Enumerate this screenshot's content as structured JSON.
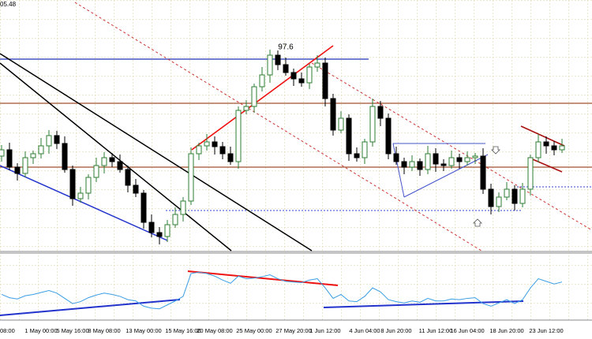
{
  "chart_data": {
    "type": "candlestick",
    "header_text": "05.48",
    "annotation": "97.6",
    "categories": [
      "08:00",
      null,
      null,
      null,
      null,
      "1 May 00:00",
      null,
      null,
      null,
      "5 May 16:00",
      null,
      null,
      null,
      "8 May 08:00",
      null,
      null,
      null,
      null,
      "13 May 00:00",
      null,
      null,
      null,
      null,
      "15 May 16:00",
      null,
      null,
      null,
      "20 May 08:00",
      null,
      null,
      null,
      null,
      "25 May 00:00",
      null,
      null,
      null,
      null,
      "27 May 20:00",
      null,
      null,
      null,
      "1 Jun 12:00",
      null,
      null,
      null,
      null,
      "4 Jun 04:00",
      null,
      null,
      null,
      "8 Jun 20:00",
      null,
      null,
      null,
      null,
      "11 Jun 12:00",
      null,
      null,
      null,
      "16 Jun 04:00",
      null,
      null,
      null,
      null,
      "18 Jun 20:00",
      null,
      null,
      null,
      null,
      "23 Jun 12:00",
      null,
      null
    ],
    "open": [
      120,
      128,
      106,
      98,
      118,
      123,
      133,
      146,
      136,
      103,
      66,
      73,
      93,
      108,
      118,
      113,
      103,
      83,
      73,
      36,
      23,
      18,
      33,
      46,
      63,
      123,
      133,
      138,
      132,
      123,
      113,
      178,
      183,
      208,
      223,
      248,
      236,
      226,
      218,
      213,
      233,
      238,
      193,
      153,
      168,
      123,
      118,
      138,
      183,
      168,
      123,
      113,
      106,
      113,
      103,
      123,
      110,
      108,
      118,
      113,
      118,
      120,
      78,
      56,
      68,
      78,
      60,
      78,
      118,
      138,
      133,
      128
    ],
    "high": [
      134,
      137,
      111,
      126,
      127,
      143,
      153,
      152,
      145,
      108,
      81,
      97,
      118,
      125,
      124,
      122,
      108,
      91,
      77,
      46,
      30,
      39,
      55,
      68,
      131,
      137,
      148,
      145,
      138,
      132,
      183,
      191,
      212,
      233,
      255,
      254,
      245,
      231,
      226,
      237,
      248,
      245,
      199,
      177,
      173,
      131,
      142,
      193,
      190,
      174,
      132,
      118,
      121,
      117,
      133,
      130,
      116,
      127,
      123,
      126,
      124,
      130,
      85,
      74,
      87,
      83,
      86,
      122,
      148,
      145,
      139,
      142
    ],
    "low": [
      113,
      102,
      89,
      93,
      110,
      117,
      123,
      129,
      99,
      57,
      61,
      65,
      87,
      98,
      106,
      99,
      74,
      68,
      28,
      17,
      8,
      11,
      29,
      37,
      58,
      115,
      127,
      122,
      116,
      109,
      104,
      173,
      175,
      202,
      213,
      229,
      222,
      209,
      208,
      205,
      227,
      183,
      146,
      149,
      114,
      113,
      110,
      132,
      158,
      116,
      109,
      97,
      101,
      95,
      97,
      100,
      101,
      104,
      104,
      108,
      110,
      72,
      46,
      49,
      64,
      51,
      55,
      70,
      112,
      123,
      121,
      124
    ],
    "close": [
      128,
      106,
      98,
      118,
      123,
      133,
      146,
      136,
      103,
      66,
      73,
      93,
      108,
      118,
      113,
      103,
      83,
      73,
      36,
      23,
      18,
      33,
      46,
      63,
      123,
      133,
      138,
      132,
      123,
      113,
      178,
      183,
      208,
      223,
      248,
      236,
      226,
      218,
      213,
      233,
      238,
      193,
      153,
      168,
      123,
      118,
      138,
      183,
      168,
      123,
      113,
      106,
      113,
      103,
      123,
      110,
      108,
      118,
      113,
      118,
      120,
      78,
      56,
      68,
      78,
      60,
      78,
      118,
      138,
      133,
      128,
      133
    ],
    "up_color": "#2e7d32",
    "down_color": "#000000",
    "ylim": [
      0,
      318
    ],
    "indicator": {
      "color": "#3a9ee4",
      "ylim": [
        0,
        100
      ],
      "values": [
        38,
        33,
        31,
        36,
        38,
        41,
        44,
        40,
        32,
        24,
        27,
        33,
        37,
        40,
        38,
        35,
        30,
        28,
        20,
        17,
        16,
        22,
        28,
        35,
        70,
        72,
        70,
        66,
        60,
        55,
        66,
        62,
        63,
        65,
        68,
        62,
        58,
        57,
        56,
        60,
        62,
        48,
        32,
        38,
        28,
        27,
        35,
        48,
        42,
        30,
        27,
        25,
        28,
        26,
        32,
        28,
        28,
        31,
        30,
        32,
        33,
        24,
        20,
        25,
        30,
        24,
        30,
        48,
        62,
        58,
        54,
        57
      ]
    }
  }
}
